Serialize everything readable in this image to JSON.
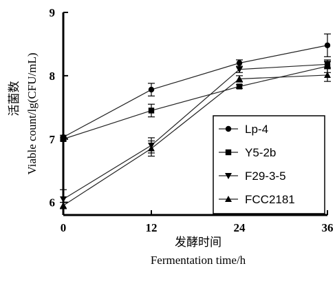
{
  "chart_data": {
    "type": "line",
    "xlabel_cn": "发酵时间",
    "xlabel_en": "Fermentation time/h",
    "ylabel_cn": "活菌数",
    "ylabel_en": "Viable count/lg(CFU/mL)",
    "x": [
      0,
      12,
      24,
      36
    ],
    "x_ticks": [
      "0",
      "12",
      "24",
      "36"
    ],
    "y_ticks": [
      "6",
      "7",
      "8",
      "9"
    ],
    "xlim": [
      0,
      36
    ],
    "ylim": [
      5.8,
      9
    ],
    "grid": false,
    "legend_position": "lower-right",
    "series": [
      {
        "name": "Lp-4",
        "marker": "circle",
        "values": [
          7.03,
          7.78,
          8.2,
          8.48
        ],
        "errors": [
          0.03,
          0.1,
          0.05,
          0.18
        ]
      },
      {
        "name": "Y5-2b",
        "marker": "square",
        "values": [
          7.0,
          7.45,
          7.83,
          8.15
        ],
        "errors": [
          0.03,
          0.1,
          0.03,
          0.1
        ]
      },
      {
        "name": "F29-3-5",
        "marker": "triangle-down",
        "values": [
          6.05,
          6.9,
          8.1,
          8.18
        ],
        "errors": [
          0.15,
          0.12,
          0.05,
          0.05
        ]
      },
      {
        "name": "FCC2181",
        "marker": "triangle-up",
        "values": [
          5.95,
          6.85,
          7.95,
          8.01
        ],
        "errors": [
          0.05,
          0.12,
          0.05,
          0.1
        ]
      }
    ]
  }
}
